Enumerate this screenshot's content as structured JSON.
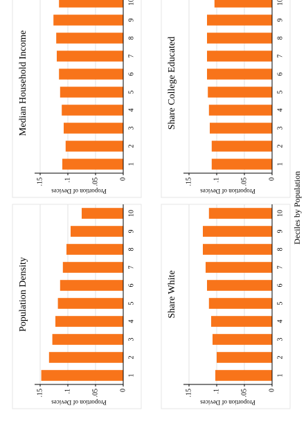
{
  "chart_data": [
    {
      "type": "bar",
      "title": "Population Density",
      "ylabel": "Proportion of Devices",
      "categories": [
        "1",
        "2",
        "3",
        "4",
        "5",
        "6",
        "7",
        "8",
        "9",
        "10"
      ],
      "values": [
        0.148,
        0.134,
        0.128,
        0.1225,
        0.118,
        0.114,
        0.109,
        0.1025,
        0.095,
        0.075
      ],
      "color": "#f8741a",
      "ylim": [
        0,
        0.16
      ],
      "yticks": [
        0,
        {
          "value": 0.05,
          "label": ".05"
        },
        {
          "value": 0.1,
          "label": ".1"
        },
        {
          "value": 0.15,
          "label": ".15"
        }
      ],
      "grid": true
    },
    {
      "type": "bar",
      "title": "Median Household Income",
      "ylabel": "Proportion of Devices",
      "categories": [
        "1",
        "2",
        "3",
        "4",
        "5",
        "6",
        "7",
        "8",
        "9",
        "10"
      ],
      "values": [
        0.11,
        0.104,
        0.1075,
        0.111,
        0.114,
        0.116,
        0.12,
        0.121,
        0.126,
        0.116
      ],
      "color": "#f8741a",
      "ylim": [
        0,
        0.16
      ],
      "yticks": [
        0,
        {
          "value": 0.05,
          "label": ".05"
        },
        {
          "value": 0.1,
          "label": ".1"
        },
        {
          "value": 0.15,
          "label": ".15"
        }
      ],
      "grid": true
    },
    {
      "type": "bar",
      "title": "Share White",
      "ylabel": "Proportion of Devices",
      "categories": [
        "1",
        "2",
        "3",
        "4",
        "5",
        "6",
        "7",
        "8",
        "9",
        "10"
      ],
      "values": [
        0.1025,
        0.1,
        0.1075,
        0.11,
        0.114,
        0.1175,
        0.12,
        0.125,
        0.125,
        0.114
      ],
      "color": "#f8741a",
      "ylim": [
        0,
        0.16
      ],
      "yticks": [
        0,
        {
          "value": 0.05,
          "label": ".05"
        },
        {
          "value": 0.1,
          "label": ".1"
        },
        {
          "value": 0.15,
          "label": ".15"
        }
      ],
      "grid": true
    },
    {
      "type": "bar",
      "title": "Share College Educated",
      "ylabel": "Proportion of Devices",
      "categories": [
        "1",
        "2",
        "3",
        "4",
        "5",
        "6",
        "7",
        "8",
        "9",
        "10"
      ],
      "values": [
        0.109,
        0.109,
        0.1125,
        0.114,
        0.116,
        0.1175,
        0.1175,
        0.1175,
        0.1175,
        0.104
      ],
      "color": "#f8741a",
      "ylim": [
        0,
        0.16
      ],
      "yticks": [
        0,
        {
          "value": 0.05,
          "label": ".05"
        },
        {
          "value": 0.1,
          "label": ".1"
        },
        {
          "value": 0.15,
          "label": ".15"
        }
      ],
      "grid": true
    }
  ],
  "x_label": "Deciles by Population"
}
